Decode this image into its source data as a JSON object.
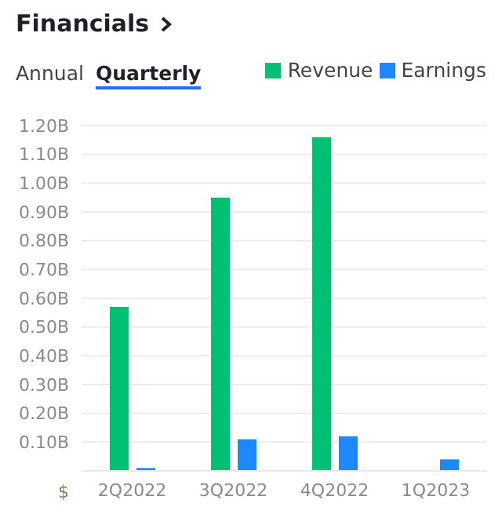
{
  "chart_data": {
    "type": "bar",
    "title": "Financials",
    "annotations": [
      "Annual",
      "Quarterly"
    ],
    "ylabel": "$",
    "categories": [
      "2Q2022",
      "3Q2022",
      "4Q2022",
      "1Q2023"
    ],
    "series": [
      {
        "name": "Revenue",
        "color": "#00c073",
        "values": [
          0.57,
          0.95,
          1.16,
          null
        ]
      },
      {
        "name": "Earnings",
        "color": "#1e88ff",
        "values": [
          0.01,
          0.11,
          0.12,
          0.04
        ]
      }
    ],
    "ylim": [
      0,
      1.2
    ],
    "yticks": [
      {
        "value": 0,
        "label": null
      },
      {
        "value": 0.1,
        "label": "0.10B"
      },
      {
        "value": 0.2,
        "label": "0.20B"
      },
      {
        "value": 0.3,
        "label": "0.30B"
      },
      {
        "value": 0.4,
        "label": "0.40B"
      },
      {
        "value": 0.5,
        "label": "0.50B"
      },
      {
        "value": 0.6,
        "label": "0.60B"
      },
      {
        "value": 0.7,
        "label": "0.70B"
      },
      {
        "value": 0.8,
        "label": "0.80B"
      },
      {
        "value": 0.9,
        "label": "0.90B"
      },
      {
        "value": 1.0,
        "label": "1.00B"
      },
      {
        "value": 1.1,
        "label": "1.10B"
      },
      {
        "value": 1.2,
        "label": "1.20B"
      }
    ],
    "grid": "y",
    "legend": "top right"
  }
}
